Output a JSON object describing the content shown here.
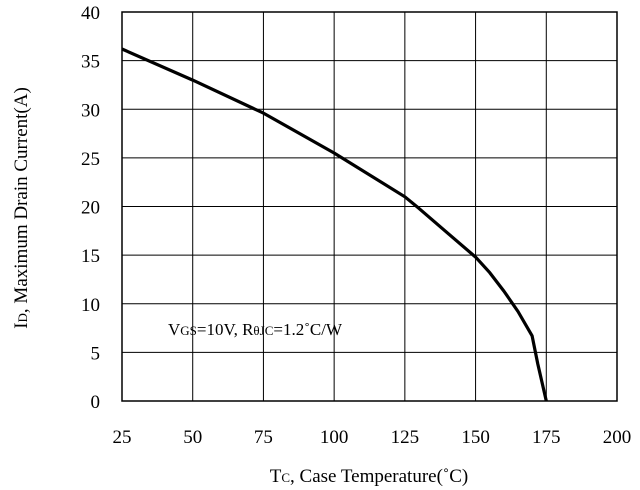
{
  "chart_data": {
    "type": "line",
    "xlabel": {
      "main": "T",
      "sub": "C",
      "rest": ", Case Temperature(˚C)"
    },
    "ylabel": {
      "main": "I",
      "sub": "D",
      "rest": ", Maximum Drain Current(A)"
    },
    "xlim": [
      25,
      200
    ],
    "ylim": [
      0,
      40
    ],
    "xticks": [
      "25",
      "50",
      "75",
      "100",
      "125",
      "150",
      "175",
      "200"
    ],
    "yticks": [
      "0",
      "5",
      "10",
      "15",
      "20",
      "25",
      "30",
      "35",
      "40"
    ],
    "grid": true,
    "annotation": {
      "vgs_main": "V",
      "vgs_sub": "GS",
      "vgs_rest": "=10V, R",
      "r_sub": "θJC",
      "r_rest": "=1.2˚C/W"
    },
    "series": [
      {
        "x": [
          25,
          50,
          75,
          100,
          125,
          130,
          140,
          150,
          155,
          160,
          165,
          170,
          172,
          175
        ],
        "y": [
          36.2,
          33.0,
          29.6,
          25.5,
          21.0,
          19.8,
          17.3,
          14.8,
          13.2,
          11.3,
          9.2,
          6.7,
          3.8,
          0
        ]
      }
    ],
    "line_color": "#000000"
  }
}
